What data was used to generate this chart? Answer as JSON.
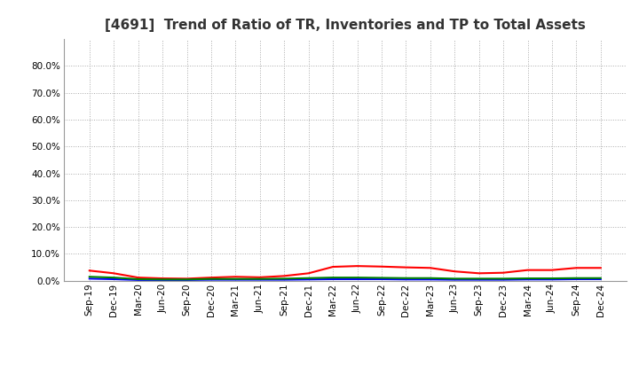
{
  "title": "[4691]  Trend of Ratio of TR, Inventories and TP to Total Assets",
  "x_labels": [
    "Sep-19",
    "Dec-19",
    "Mar-20",
    "Jun-20",
    "Sep-20",
    "Dec-20",
    "Mar-21",
    "Jun-21",
    "Sep-21",
    "Dec-21",
    "Mar-22",
    "Jun-22",
    "Sep-22",
    "Dec-22",
    "Mar-23",
    "Jun-23",
    "Sep-23",
    "Dec-23",
    "Mar-24",
    "Jun-24",
    "Sep-24",
    "Dec-24"
  ],
  "trade_receivables": [
    3.8,
    2.8,
    1.2,
    0.9,
    0.8,
    1.2,
    1.5,
    1.3,
    1.8,
    2.8,
    5.2,
    5.5,
    5.3,
    5.0,
    4.8,
    3.5,
    2.8,
    3.0,
    4.0,
    4.0,
    4.8,
    4.8
  ],
  "inventories": [
    0.8,
    0.6,
    0.3,
    0.3,
    0.3,
    0.4,
    0.4,
    0.4,
    0.4,
    0.5,
    0.6,
    0.6,
    0.6,
    0.5,
    0.5,
    0.4,
    0.4,
    0.4,
    0.5,
    0.5,
    0.6,
    0.6
  ],
  "trade_payables": [
    1.5,
    1.2,
    0.6,
    0.5,
    0.5,
    0.7,
    0.7,
    0.7,
    0.8,
    1.0,
    1.2,
    1.2,
    1.1,
    1.0,
    1.0,
    0.8,
    0.8,
    0.8,
    0.9,
    0.9,
    1.0,
    1.0
  ],
  "color_tr": "#ff0000",
  "color_inv": "#0000ff",
  "color_tp": "#008000",
  "background_color": "#ffffff",
  "grid_color": "#aaaaaa",
  "title_fontsize": 11,
  "tick_fontsize": 7.5,
  "legend_fontsize": 9
}
